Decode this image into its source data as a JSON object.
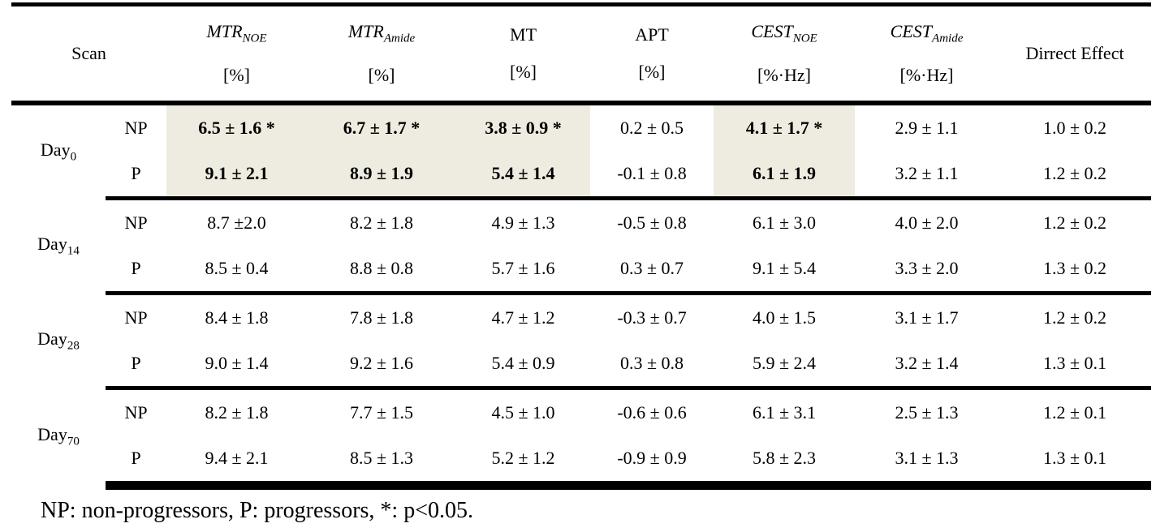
{
  "table": {
    "header": [
      {
        "text": "Scan"
      },
      {
        "text": "MTR",
        "sub": "NOE",
        "unit": "[%]",
        "italic": true
      },
      {
        "text": "MTR",
        "sub": "Amide",
        "unit": "[%]",
        "italic": true
      },
      {
        "text": "MT",
        "unit": "[%]"
      },
      {
        "text": "APT",
        "unit": "[%]"
      },
      {
        "text": "CEST",
        "sub": "NOE",
        "unit": "[%·Hz]",
        "italic": true
      },
      {
        "text": "CEST",
        "sub": "Amide",
        "unit": "[%·Hz]",
        "italic": true
      },
      {
        "text": "Dirrect Effect"
      }
    ],
    "groups": [
      {
        "scan": "Day",
        "scan_sub": "0",
        "highlight_columns": [
          0,
          1,
          2,
          4
        ],
        "rows": [
          {
            "label": "NP",
            "cells": [
              "6.5 ± 1.6 *",
              "6.7 ± 1.7 *",
              "3.8 ± 0.9 *",
              "0.2 ± 0.5",
              "4.1 ± 1.7 *",
              "2.9 ± 1.1",
              "1.0 ± 0.2"
            ]
          },
          {
            "label": "P",
            "cells": [
              "9.1 ± 2.1",
              "8.9 ± 1.9",
              "5.4 ± 1.4",
              "-0.1 ± 0.8",
              "6.1 ± 1.9",
              "3.2 ± 1.1",
              "1.2 ± 0.2"
            ]
          }
        ]
      },
      {
        "scan": "Day",
        "scan_sub": "14",
        "highlight_columns": [],
        "rows": [
          {
            "label": "NP",
            "cells": [
              "8.7 ±2.0",
              "8.2 ± 1.8",
              "4.9 ± 1.3",
              "-0.5 ± 0.8",
              "6.1 ± 3.0",
              "4.0 ± 2.0",
              "1.2 ± 0.2"
            ]
          },
          {
            "label": "P",
            "cells": [
              "8.5 ± 0.4",
              "8.8 ± 0.8",
              "5.7 ± 1.6",
              "0.3 ± 0.7",
              "9.1 ± 5.4",
              "3.3 ± 2.0",
              "1.3 ± 0.2"
            ]
          }
        ]
      },
      {
        "scan": "Day",
        "scan_sub": "28",
        "highlight_columns": [],
        "rows": [
          {
            "label": "NP",
            "cells": [
              "8.4 ± 1.8",
              "7.8 ± 1.8",
              "4.7 ± 1.2",
              "-0.3 ± 0.7",
              "4.0 ± 1.5",
              "3.1 ± 1.7",
              "1.2 ± 0.2"
            ]
          },
          {
            "label": "P",
            "cells": [
              "9.0 ± 1.4",
              "9.2 ± 1.6",
              "5.4 ± 0.9",
              "0.3 ± 0.8",
              "5.9 ± 2.4",
              "3.2 ± 1.4",
              "1.3 ± 0.1"
            ]
          }
        ]
      },
      {
        "scan": "Day",
        "scan_sub": "70",
        "highlight_columns": [],
        "rows": [
          {
            "label": "NP",
            "cells": [
              "8.2 ± 1.8",
              "7.7 ± 1.5",
              "4.5 ± 1.0",
              "-0.6 ± 0.6",
              "6.1 ± 3.1",
              "2.5 ± 1.3",
              "1.2 ± 0.1"
            ]
          },
          {
            "label": "P",
            "cells": [
              "9.4 ± 2.1",
              "8.5 ± 1.3",
              "5.2 ± 1.2",
              "-0.9 ± 0.9",
              "5.8 ± 2.3",
              "3.1 ± 1.3",
              "1.3 ± 0.1"
            ]
          }
        ]
      }
    ]
  },
  "footnote": "NP: non-progressors, P: progressors, *: p<0.05."
}
